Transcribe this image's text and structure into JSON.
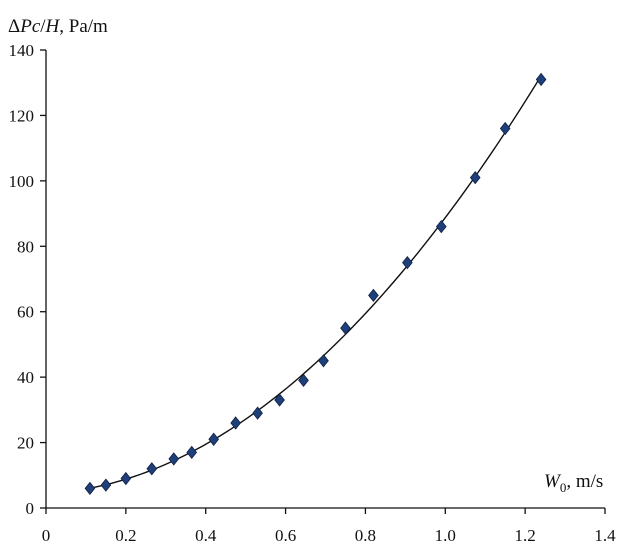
{
  "chart_data": {
    "type": "scatter",
    "ylabel_parts": [
      "Δ",
      "Pc",
      "/",
      "H",
      ", Pa/m"
    ],
    "xlabel_parts": [
      "W",
      "0",
      ", m/s"
    ],
    "xlim": [
      0,
      1.4
    ],
    "ylim": [
      0,
      140
    ],
    "x_ticks": [
      "0",
      "0.2",
      "0.4",
      "0.6",
      "0.8",
      "1.0",
      "1.2",
      "1.4"
    ],
    "y_ticks": [
      "0",
      "20",
      "40",
      "60",
      "80",
      "100",
      "120",
      "140"
    ],
    "grid": false,
    "series": [
      {
        "marker": "diamond",
        "color": "#1f3f7a",
        "x": [
          0.11,
          0.15,
          0.2,
          0.265,
          0.32,
          0.365,
          0.42,
          0.475,
          0.53,
          0.585,
          0.645,
          0.695,
          0.75,
          0.82,
          0.905,
          0.99,
          1.075,
          1.15,
          1.24
        ],
        "y": [
          6,
          7,
          9,
          12,
          15,
          17,
          21,
          26,
          29,
          33,
          39,
          45,
          55,
          65,
          75,
          86,
          101,
          116,
          131
        ]
      }
    ],
    "trendline": {
      "type": "polynomial",
      "color": "#111111"
    }
  }
}
